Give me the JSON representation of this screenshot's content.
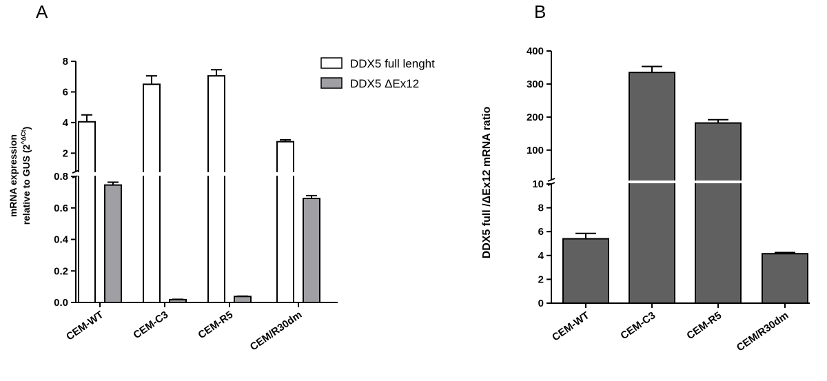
{
  "panels": {
    "a": {
      "label": "A"
    },
    "b": {
      "label": "B"
    }
  },
  "chart_data": [
    {
      "type": "bar",
      "panel": "A",
      "categories": [
        "CEM-WT",
        "CEM-C3",
        "CEM-R5",
        "CEM/R30dm"
      ],
      "ylabel_line1": "mRNA expression",
      "ylabel_line2": "relative to GUS (2^ΔCt)",
      "ylabel_parts": {
        "base": "relative to GUS (2",
        "sup": "^ΔCt",
        "close": ")"
      },
      "broken_axis": true,
      "lower_segment": {
        "ylim": [
          0,
          0.8
        ],
        "ticks": [
          "0.0",
          "0.2",
          "0.4",
          "0.6",
          "0.8"
        ]
      },
      "upper_segment": {
        "ylim": [
          0.8,
          8
        ],
        "ticks": [
          "2",
          "4",
          "6",
          "8"
        ]
      },
      "series": [
        {
          "name": "DDX5 full lenght",
          "color": "#ffffff",
          "values": [
            4.05,
            6.5,
            7.05,
            2.75
          ],
          "errors": [
            0.45,
            0.55,
            0.4,
            0.12
          ]
        },
        {
          "name": "DDX5 ΔEx12",
          "color": "#a0a0a4",
          "values": [
            0.745,
            0.018,
            0.038,
            0.66
          ],
          "errors": [
            0.018,
            0.002,
            0.002,
            0.018
          ]
        }
      ],
      "legend": [
        "DDX5 full lenght",
        "DDX5 ΔEx12"
      ]
    },
    {
      "type": "bar",
      "panel": "B",
      "categories": [
        "CEM-WT",
        "CEM-C3",
        "CEM-R5",
        "CEM/R30dm"
      ],
      "ylabel": "DDX5 full /ΔEx12 mRNA ratio",
      "broken_axis": true,
      "lower_segment": {
        "ylim": [
          0,
          10
        ],
        "ticks": [
          "0",
          "2",
          "4",
          "6",
          "8",
          "10"
        ]
      },
      "upper_segment": {
        "ylim": [
          10,
          400
        ],
        "ticks": [
          "100",
          "200",
          "300",
          "400"
        ]
      },
      "series": [
        {
          "name": "ratio",
          "color": "#606060",
          "values": [
            5.4,
            335,
            182,
            4.15
          ],
          "errors": [
            0.45,
            18,
            10,
            0.1
          ]
        }
      ]
    }
  ]
}
